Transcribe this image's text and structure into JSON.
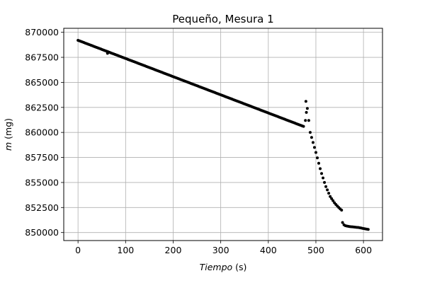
{
  "chart_data": {
    "type": "scatter",
    "title": "Pequeño, Mesura 1",
    "xlabel_var": "Tiempo",
    "xlabel_unit": " (s)",
    "ylabel_var": "m",
    "ylabel_unit": " (mg)",
    "xlim": [
      -30,
      640
    ],
    "ylim": [
      849200,
      870400
    ],
    "xticks": [
      0,
      100,
      200,
      300,
      400,
      500,
      600
    ],
    "yticks": [
      850000,
      852500,
      855000,
      857500,
      860000,
      862500,
      865000,
      867500,
      870000
    ],
    "ytick_labels": [
      "850000",
      "852500",
      "855000",
      "857500",
      "860000",
      "862500",
      "865000",
      "867500",
      "870000"
    ],
    "grid": true,
    "marker_color": "#000000",
    "segments": [
      {
        "x_start": 0,
        "x_end": 474,
        "step": 3,
        "y_start": 869200,
        "y_end": 860600
      },
      {
        "x_start": 479,
        "x_end": 555,
        "step": 3,
        "knots_x": [
          479,
          482,
          488,
          500,
          510,
          520,
          530,
          540,
          550,
          555
        ],
        "knots_y": [
          863100,
          862400,
          860000,
          858000,
          856200,
          854700,
          853600,
          852900,
          852400,
          852200
        ]
      },
      {
        "x_start": 556,
        "x_end": 612,
        "step": 3,
        "knots_x": [
          556,
          560,
          570,
          580,
          590,
          600,
          612
        ],
        "knots_y": [
          851000,
          850700,
          850600,
          850550,
          850500,
          850400,
          850300
        ]
      }
    ],
    "extra_points": [
      {
        "x": 62,
        "y": 867900
      },
      {
        "x": 478,
        "y": 861200
      },
      {
        "x": 480,
        "y": 862000
      }
    ]
  }
}
